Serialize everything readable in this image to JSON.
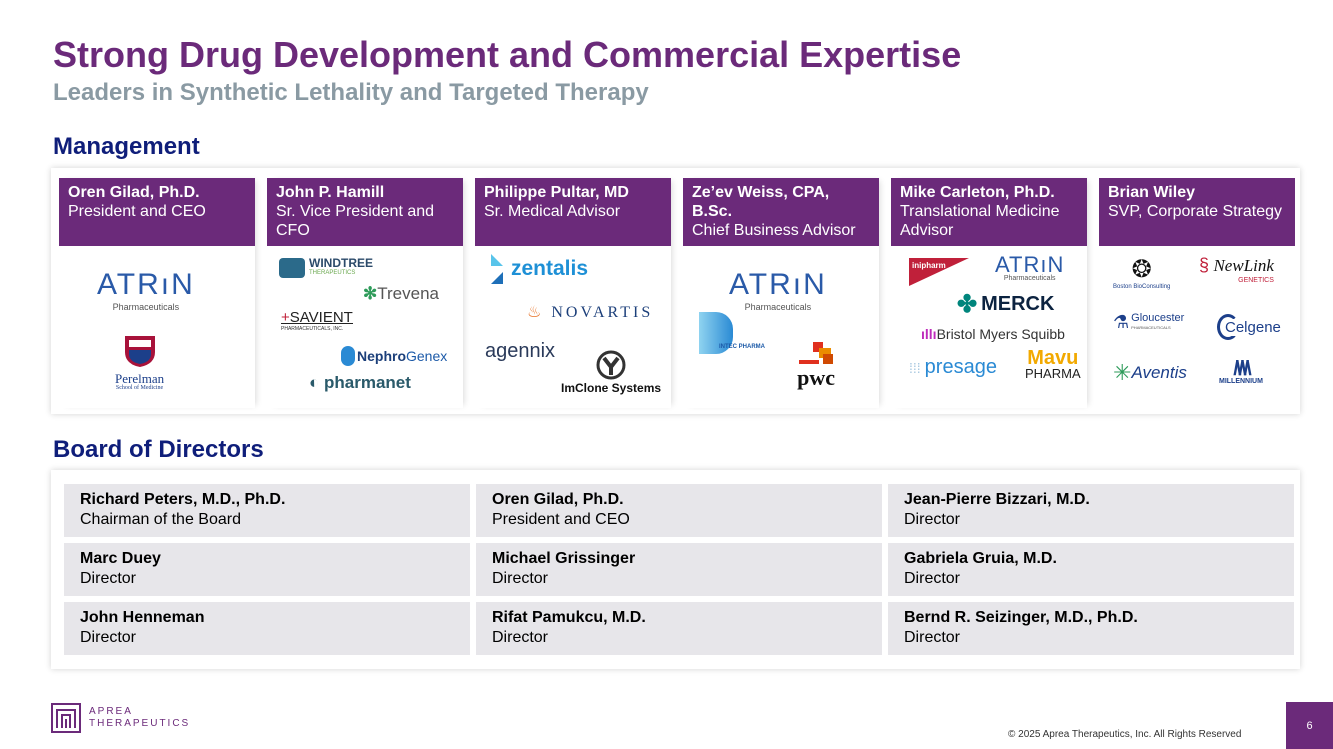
{
  "header": {
    "title": "Strong Drug Development and Commercial Expertise",
    "subtitle": "Leaders in Synthetic Lethality and Targeted Therapy"
  },
  "management": {
    "heading": "Management",
    "people": [
      {
        "name": "Oren Gilad, Ph.D.",
        "role": "President and CEO"
      },
      {
        "name": "John P. Hamill",
        "role": "Sr. Vice President and CFO"
      },
      {
        "name": "Philippe Pultar, MD",
        "role": "Sr. Medical Advisor"
      },
      {
        "name": "Ze’ev Weiss, CPA, B.Sc.",
        "role": "Chief Business Advisor"
      },
      {
        "name": "Mike Carleton, Ph.D.",
        "role": "Translational Medicine Advisor"
      },
      {
        "name": "Brian Wiley",
        "role": "SVP, Corporate Strategy"
      }
    ],
    "logos": {
      "atrin": "ATRıN",
      "atrin_sub": "Pharmaceuticals",
      "perelman": "Perelman",
      "perelman_sub": "School of Medicine",
      "windtree": "WINDTREE",
      "windtree_sub": "THERAPEUTICS",
      "trevena": "Trevena",
      "savient": "SAVIENT",
      "savient_sub": "PHARMACEUTICALS, INC.",
      "nephrogenex_a": "Nephro",
      "nephrogenex_b": "Genex",
      "pharmanet": "pharmanet",
      "zentalis": "zentalis",
      "novartis": "NOVARTIS",
      "agennix": "agennix",
      "imclone": "ImClone Systems",
      "intec": "INTEC PHARMA",
      "pwc": "pwc",
      "inipharm": "inipharm",
      "merck": "MERCK",
      "bms": "Bristol Myers Squibb",
      "presage": "presage",
      "mavu": "Mavu",
      "mavu_sub": "PHARMA",
      "bbc": "Boston BioConsulting",
      "newlink": "NewLink",
      "newlink_sub": "GENETICS",
      "gloucester": "Gloucester",
      "gloucester_sub": "PHARMACEUTICALS",
      "celgene": "Celgene",
      "aventis": "Aventis",
      "millennium": "MILLENNIUM"
    }
  },
  "board": {
    "heading": "Board of Directors",
    "members": [
      {
        "name": "Richard Peters, M.D., Ph.D.",
        "role": "Chairman of the Board"
      },
      {
        "name": "Oren Gilad, Ph.D.",
        "role": "President and CEO"
      },
      {
        "name": "Jean-Pierre Bizzari, M.D.",
        "role": "Director"
      },
      {
        "name": "Marc Duey",
        "role": "Director"
      },
      {
        "name": "Michael Grissinger",
        "role": "Director"
      },
      {
        "name": "Gabriela Gruia, M.D.",
        "role": "Director"
      },
      {
        "name": "John Henneman",
        "role": "Director"
      },
      {
        "name": "Rifat Pamukcu, M.D.",
        "role": "Director"
      },
      {
        "name": "Bernd R. Seizinger, M.D., Ph.D.",
        "role": "Director"
      }
    ]
  },
  "footer": {
    "brand_line1": "APREA",
    "brand_line2": "THERAPEUTICS",
    "copyright": "© 2025 Aprea Therapeutics, Inc. All Rights Reserved",
    "page_number": "6"
  },
  "colors": {
    "brand_purple": "#6b2a7a",
    "navy": "#0f1e7a",
    "gray_subtitle": "#8a9aa3",
    "cell_bg": "#e7e6ea"
  }
}
